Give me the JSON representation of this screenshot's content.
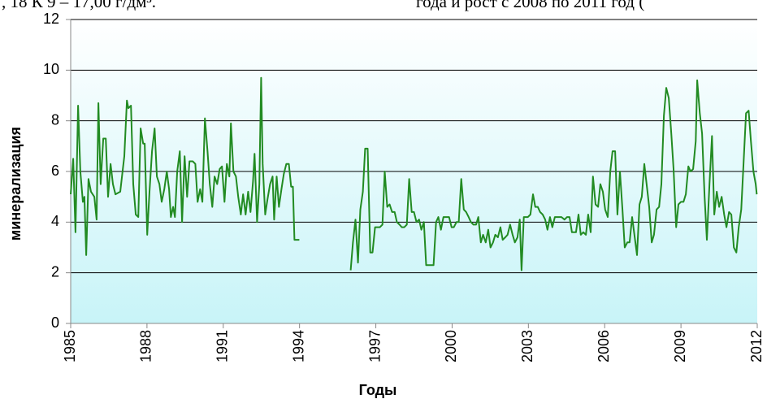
{
  "chart_data": {
    "type": "line",
    "annotations": [
      ", 18 К 9 – 17,00 г/дм³.",
      "года и рост с 2008 по 2011 год ("
    ],
    "x_label": "Годы",
    "y_label": "минерализация",
    "xlim": [
      1985,
      2012
    ],
    "xticks": [
      1985,
      1988,
      1991,
      1994,
      1997,
      2000,
      2003,
      2006,
      2009,
      2012
    ],
    "ylim": [
      0,
      12
    ],
    "yticks": [
      0,
      2,
      4,
      6,
      8,
      10,
      12
    ],
    "grid": true,
    "x": [
      1985.0,
      1985.1,
      1985.19,
      1985.29,
      1985.38,
      1985.48,
      1985.54,
      1985.61,
      1985.7,
      1985.8,
      1985.93,
      1986.02,
      1986.09,
      1986.18,
      1986.28,
      1986.38,
      1986.47,
      1986.57,
      1986.66,
      1986.76,
      1986.95,
      1987.11,
      1987.21,
      1987.27,
      1987.37,
      1987.46,
      1987.56,
      1987.66,
      1987.75,
      1987.85,
      1987.91,
      1988.01,
      1988.1,
      1988.2,
      1988.3,
      1988.39,
      1988.49,
      1988.58,
      1988.68,
      1988.78,
      1988.87,
      1988.94,
      1989.03,
      1989.1,
      1989.19,
      1989.29,
      1989.38,
      1989.48,
      1989.58,
      1989.67,
      1989.8,
      1989.9,
      1989.99,
      1990.09,
      1990.18,
      1990.28,
      1990.38,
      1990.47,
      1990.57,
      1990.66,
      1990.76,
      1990.86,
      1990.95,
      1991.05,
      1991.14,
      1991.24,
      1991.3,
      1991.4,
      1991.5,
      1991.59,
      1991.69,
      1991.78,
      1991.88,
      1991.98,
      1992.07,
      1992.17,
      1992.23,
      1992.33,
      1992.42,
      1992.49,
      1992.55,
      1992.65,
      1992.74,
      1992.84,
      1992.94,
      1993.0,
      1993.1,
      1993.19,
      1993.29,
      1993.38,
      1993.48,
      1993.58,
      1993.67,
      1993.74,
      1993.8,
      1993.99,
      1995.0,
      1996.01,
      1996.1,
      1996.2,
      1996.3,
      1996.39,
      1996.49,
      1996.58,
      1996.68,
      1996.78,
      1996.87,
      1996.97,
      1997.16,
      1997.26,
      1997.35,
      1997.45,
      1997.54,
      1997.64,
      1997.74,
      1997.83,
      1997.93,
      1998.02,
      1998.12,
      1998.22,
      1998.31,
      1998.41,
      1998.5,
      1998.6,
      1998.7,
      1998.79,
      1998.89,
      1998.98,
      1999.08,
      1999.27,
      1999.37,
      1999.46,
      1999.56,
      1999.66,
      1999.88,
      1999.98,
      2000.07,
      2000.17,
      2000.26,
      2000.36,
      2000.46,
      2000.55,
      2000.65,
      2000.74,
      2000.84,
      2000.94,
      2001.03,
      2001.13,
      2001.22,
      2001.32,
      2001.42,
      2001.51,
      2001.61,
      2001.7,
      2001.8,
      2001.9,
      2001.99,
      2002.09,
      2002.18,
      2002.28,
      2002.38,
      2002.47,
      2002.57,
      2002.66,
      2002.73,
      2002.82,
      2002.98,
      2003.08,
      2003.18,
      2003.27,
      2003.37,
      2003.46,
      2003.56,
      2003.66,
      2003.75,
      2003.85,
      2003.94,
      2004.04,
      2004.3,
      2004.42,
      2004.52,
      2004.62,
      2004.71,
      2004.87,
      2004.97,
      2005.06,
      2005.16,
      2005.26,
      2005.35,
      2005.45,
      2005.54,
      2005.64,
      2005.74,
      2005.83,
      2005.93,
      2006.02,
      2006.12,
      2006.22,
      2006.31,
      2006.41,
      2006.5,
      2006.6,
      2006.7,
      2006.79,
      2006.89,
      2006.98,
      2007.08,
      2007.18,
      2007.27,
      2007.37,
      2007.46,
      2007.56,
      2007.66,
      2007.75,
      2007.85,
      2007.94,
      2008.04,
      2008.14,
      2008.23,
      2008.33,
      2008.42,
      2008.52,
      2008.62,
      2008.71,
      2008.81,
      2008.9,
      2009.0,
      2009.1,
      2009.19,
      2009.29,
      2009.38,
      2009.48,
      2009.58,
      2009.64,
      2009.74,
      2009.83,
      2009.93,
      2010.02,
      2010.12,
      2010.22,
      2010.31,
      2010.41,
      2010.5,
      2010.6,
      2010.7,
      2010.79,
      2010.89,
      2010.98,
      2011.08,
      2011.18,
      2011.27,
      2011.37,
      2011.46,
      2011.56,
      2011.66,
      2011.75,
      2011.85,
      2011.94,
      2011.98
    ],
    "series": [
      {
        "color": "#228b22",
        "values": [
          5.1,
          6.5,
          3.6,
          8.6,
          6.0,
          4.8,
          5.0,
          2.7,
          5.7,
          5.2,
          5.0,
          4.1,
          8.7,
          5.5,
          7.3,
          7.3,
          5.0,
          6.3,
          5.5,
          5.1,
          5.2,
          6.6,
          8.8,
          8.5,
          8.6,
          5.5,
          4.3,
          4.2,
          7.7,
          7.1,
          7.1,
          3.5,
          5.2,
          6.8,
          7.7,
          5.8,
          5.5,
          4.8,
          5.3,
          6.0,
          5.3,
          4.2,
          4.6,
          4.2,
          6.0,
          6.8,
          4.0,
          6.6,
          5.0,
          6.4,
          6.4,
          6.3,
          4.8,
          5.3,
          4.8,
          8.1,
          6.8,
          5.5,
          4.6,
          5.8,
          5.5,
          6.1,
          6.2,
          4.8,
          6.3,
          5.8,
          7.9,
          6.0,
          5.8,
          5.0,
          4.3,
          5.1,
          4.3,
          5.2,
          4.4,
          5.6,
          6.7,
          4.0,
          5.5,
          9.7,
          6.3,
          4.3,
          4.9,
          5.5,
          5.8,
          4.1,
          5.8,
          4.6,
          5.3,
          5.9,
          6.3,
          6.3,
          5.4,
          5.4,
          3.3,
          3.3,
          null,
          2.1,
          3.2,
          4.1,
          2.4,
          4.5,
          5.2,
          6.9,
          6.9,
          2.8,
          2.8,
          3.8,
          3.8,
          3.9,
          6.0,
          4.6,
          4.7,
          4.4,
          4.4,
          4.0,
          3.9,
          3.8,
          3.8,
          3.9,
          5.7,
          4.4,
          4.4,
          4.0,
          4.1,
          3.7,
          4.0,
          2.3,
          2.3,
          2.3,
          4.0,
          4.2,
          3.7,
          4.2,
          4.2,
          3.8,
          3.8,
          4.0,
          4.0,
          5.7,
          4.5,
          4.4,
          4.2,
          4.0,
          3.9,
          3.9,
          4.2,
          3.2,
          3.5,
          3.2,
          3.7,
          3.0,
          3.2,
          3.5,
          3.4,
          3.8,
          3.3,
          3.4,
          3.5,
          3.9,
          3.5,
          3.2,
          3.4,
          4.1,
          2.1,
          4.2,
          4.2,
          4.3,
          5.1,
          4.6,
          4.6,
          4.4,
          4.3,
          4.1,
          3.7,
          4.2,
          3.8,
          4.2,
          4.2,
          4.1,
          4.2,
          4.2,
          3.6,
          3.6,
          4.3,
          3.5,
          3.6,
          3.5,
          4.3,
          3.6,
          5.8,
          4.7,
          4.6,
          5.5,
          5.2,
          4.5,
          4.2,
          6.0,
          6.8,
          6.8,
          4.3,
          6.0,
          4.5,
          3.0,
          3.2,
          3.2,
          4.2,
          3.4,
          2.7,
          4.7,
          5.0,
          6.3,
          5.4,
          4.6,
          3.2,
          3.5,
          4.5,
          4.6,
          5.5,
          8.2,
          9.3,
          8.9,
          7.5,
          6.1,
          3.8,
          4.7,
          4.8,
          4.8,
          5.1,
          6.2,
          6.0,
          6.1,
          7.2,
          9.6,
          8.3,
          7.5,
          5.0,
          3.3,
          5.5,
          7.4,
          4.3,
          5.2,
          4.6,
          5.0,
          4.3,
          3.8,
          4.4,
          4.3,
          3.0,
          2.8,
          3.8,
          4.5,
          6.3,
          8.3,
          8.4,
          7.2,
          6.0,
          5.5,
          5.1
        ]
      }
    ]
  }
}
